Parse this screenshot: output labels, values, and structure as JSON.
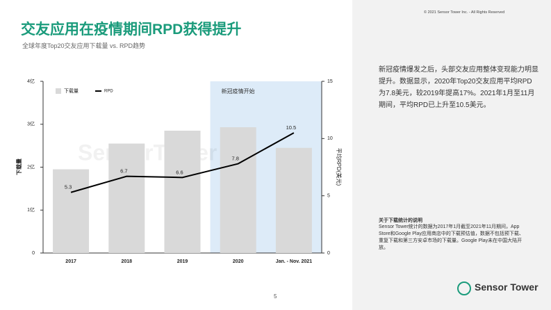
{
  "header": {
    "title": "交友应用在疫情期间RPD获得提升",
    "subtitle": "全球年度Top20交友应用下载量 vs. RPD趋势",
    "copyright": "© 2021 Sensor Tower Inc. - All Rights Reserved"
  },
  "chart_data": {
    "type": "bar",
    "categories": [
      "2017",
      "2018",
      "2019",
      "2020",
      "Jan. - Nov. 2021"
    ],
    "series": [
      {
        "name": "下载量",
        "color": "#d9d9d9",
        "type": "bar",
        "values": [
          1.95,
          2.55,
          2.85,
          2.93,
          2.45
        ]
      },
      {
        "name": "RPD",
        "color": "#000000",
        "type": "line",
        "axis": "y2",
        "values": [
          5.3,
          6.7,
          6.6,
          7.8,
          10.5
        ]
      }
    ],
    "ylabel": "下载量",
    "y2label": "平均RPD(美元)",
    "ylim": [
      0,
      4
    ],
    "yticks": [
      0,
      {
        "value": 1,
        "label": "1亿"
      },
      {
        "value": 2,
        "label": "2亿"
      },
      {
        "value": 3,
        "label": "3亿"
      },
      {
        "value": 4,
        "label": "4亿"
      }
    ],
    "y2lim": [
      0,
      15
    ],
    "y2ticks": [
      0,
      5,
      10,
      15
    ],
    "annotation": "新冠疫情开始",
    "watermark": "SensorTower",
    "grid": false
  },
  "sidebar": {
    "text": "新冠疫情爆发之后，头部交友应用整体变现能力明显提升。数据显示，2020年Top20交友应用平均RPD为7.8美元，较2019年提高17%。2021年1月至11月期间，平均RPD已上升至10.5美元。",
    "note_title": "关于下载统计的说明",
    "note_text": "Sensor Tower统计的数据为2017年1月截至2021年11月期间，App Store和Google Play应用商店中的下载预估值，数据不包括预下载、重复下载和第三方安卓市场的下载量。Google Play未在中国大陆开放。"
  },
  "footer": {
    "page": "5",
    "logo": "Sensor Tower"
  }
}
